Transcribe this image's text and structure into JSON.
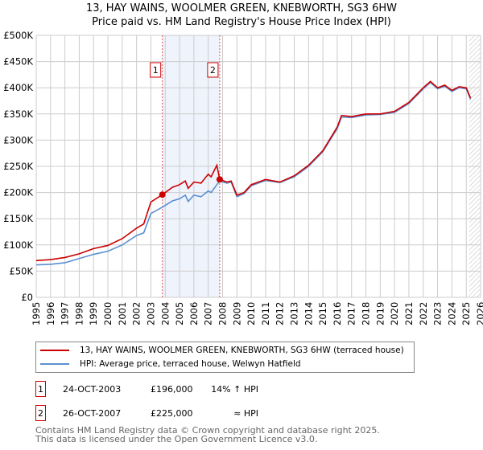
{
  "title": "13, HAY WAINS, WOOLMER GREEN, KNEBWORTH, SG3 6HW",
  "subtitle": "Price paid vs. HM Land Registry's House Price Index (HPI)",
  "chart_data": {
    "type": "line",
    "xlim": [
      1995,
      2026
    ],
    "ylim": [
      0,
      500000
    ],
    "y_ticks": [
      "£0",
      "£50K",
      "£100K",
      "£150K",
      "£200K",
      "£250K",
      "£300K",
      "£350K",
      "£400K",
      "£450K",
      "£500K"
    ],
    "x_ticks": [
      "1995",
      "1996",
      "1997",
      "1998",
      "1999",
      "2000",
      "2001",
      "2002",
      "2003",
      "2004",
      "2005",
      "2006",
      "2007",
      "2008",
      "2009",
      "2010",
      "2011",
      "2012",
      "2013",
      "2014",
      "2015",
      "2016",
      "2017",
      "2018",
      "2019",
      "2020",
      "2021",
      "2022",
      "2023",
      "2024",
      "2025",
      "2026"
    ],
    "grid": true,
    "shaded_range": [
      2003.8,
      2007.8
    ],
    "hatched_from": 2025.2,
    "series": [
      {
        "name": "13, HAY WAINS, WOOLMER GREEN, KNEBWORTH, SG3 6HW (terraced house)",
        "color": "#cc0000",
        "x": [
          1995,
          1996,
          1997,
          1998,
          1999,
          2000,
          2001,
          2002,
          2002.5,
          2003,
          2003.8,
          2004.5,
          2005,
          2005.4,
          2005.6,
          2006,
          2006.5,
          2007,
          2007.2,
          2007.6,
          2007.8,
          2008.3,
          2008.6,
          2009,
          2009.5,
          2010,
          2011,
          2012,
          2013,
          2014,
          2015,
          2016,
          2016.3,
          2017,
          2018,
          2019,
          2020,
          2021,
          2022,
          2022.5,
          2023,
          2023.5,
          2024,
          2024.5,
          2025,
          2025.3
        ],
        "y": [
          70000,
          72000,
          76000,
          83000,
          93000,
          99000,
          112000,
          132000,
          140000,
          182000,
          196000,
          210000,
          215000,
          222000,
          208000,
          220000,
          218000,
          235000,
          230000,
          252000,
          225000,
          220000,
          222000,
          195000,
          200000,
          215000,
          225000,
          220000,
          232000,
          252000,
          280000,
          325000,
          347000,
          345000,
          350000,
          350000,
          355000,
          372000,
          400000,
          412000,
          400000,
          405000,
          395000,
          402000,
          400000,
          380000
        ]
      },
      {
        "name": "HPI: Average price, terraced house, Welwyn Hatfield",
        "color": "#5b8fd0",
        "x": [
          1995,
          1996,
          1997,
          1998,
          1999,
          2000,
          2001,
          2002,
          2002.5,
          2003,
          2003.8,
          2004.5,
          2005,
          2005.4,
          2005.6,
          2006,
          2006.5,
          2007,
          2007.2,
          2007.6,
          2007.8,
          2008.3,
          2008.6,
          2009,
          2009.5,
          2010,
          2011,
          2012,
          2013,
          2014,
          2015,
          2016,
          2016.3,
          2017,
          2018,
          2019,
          2020,
          2021,
          2022,
          2022.5,
          2023,
          2023.5,
          2024,
          2024.5,
          2025,
          2025.3
        ],
        "y": [
          62000,
          63000,
          66000,
          74000,
          82000,
          88000,
          100000,
          118000,
          123000,
          160000,
          172000,
          184000,
          188000,
          195000,
          183000,
          195000,
          192000,
          203000,
          200000,
          215000,
          222000,
          218000,
          220000,
          192000,
          198000,
          213000,
          223000,
          219000,
          230000,
          250000,
          278000,
          322000,
          344000,
          343000,
          348000,
          349000,
          353000,
          370000,
          398000,
          410000,
          398000,
          403000,
          393000,
          400000,
          398000,
          378000
        ]
      }
    ],
    "sales": [
      {
        "label": "1",
        "x": 2003.8,
        "y": 196000
      },
      {
        "label": "2",
        "x": 2007.8,
        "y": 225000
      }
    ]
  },
  "legend": {
    "red": "13, HAY WAINS, WOOLMER GREEN, KNEBWORTH, SG3 6HW (terraced house)",
    "blue": "HPI: Average price, terraced house, Welwyn Hatfield"
  },
  "annotations": [
    {
      "num": "1",
      "date": "24-OCT-2003",
      "price": "£196,000",
      "rel": "14% ↑ HPI"
    },
    {
      "num": "2",
      "date": "26-OCT-2007",
      "price": "£225,000",
      "rel": "≈ HPI"
    }
  ],
  "footer": [
    "Contains HM Land Registry data © Crown copyright and database right 2025.",
    "This data is licensed under the Open Government Licence v3.0."
  ]
}
